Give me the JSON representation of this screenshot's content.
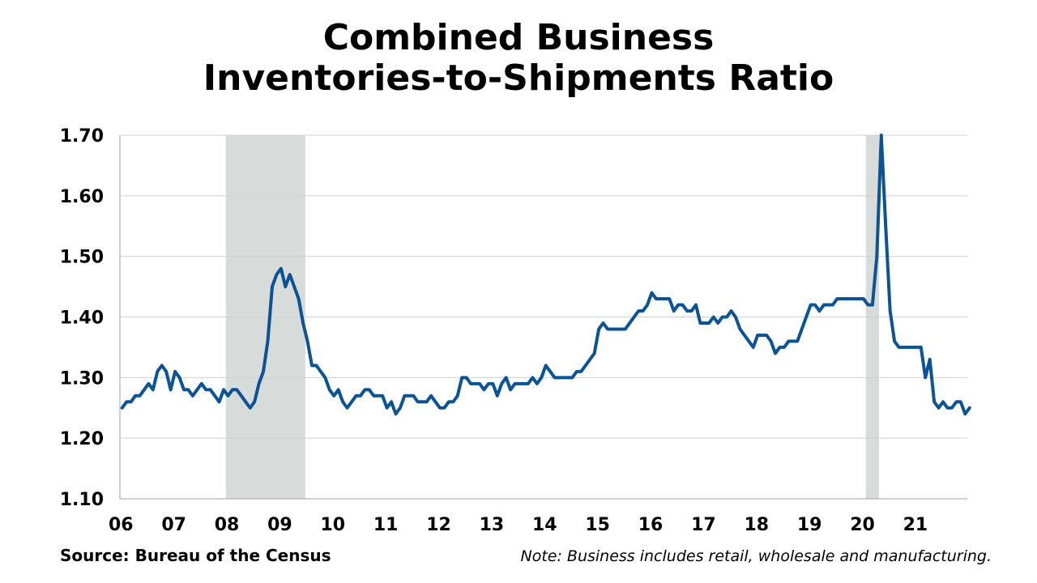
{
  "chart_data": {
    "type": "line",
    "title_line1": "Combined Business",
    "title_line2": "Inventories-to-Shipments Ratio",
    "ylim": [
      1.1,
      1.7
    ],
    "yticks": [
      "1.70",
      "1.60",
      "1.50",
      "1.40",
      "1.30",
      "1.20",
      "1.10"
    ],
    "xticks": [
      "06",
      "07",
      "08",
      "09",
      "10",
      "11",
      "12",
      "13",
      "14",
      "15",
      "16",
      "17",
      "18",
      "19",
      "20",
      "21"
    ],
    "x_start": "2006-01",
    "x_end": "2021-11",
    "grid": true,
    "line_color": "#0b5394",
    "recession_color": "#d7dbd9",
    "recessions": [
      [
        "2008-01",
        "2009-06"
      ],
      [
        "2020-02",
        "2020-04"
      ]
    ],
    "series": [
      {
        "values": [
          1.25,
          1.26,
          1.26,
          1.27,
          1.27,
          1.28,
          1.29,
          1.28,
          1.31,
          1.32,
          1.31,
          1.28,
          1.31,
          1.3,
          1.28,
          1.28,
          1.27,
          1.28,
          1.29,
          1.28,
          1.28,
          1.27,
          1.26,
          1.28,
          1.27,
          1.28,
          1.28,
          1.27,
          1.26,
          1.25,
          1.26,
          1.29,
          1.31,
          1.36,
          1.45,
          1.47,
          1.48,
          1.45,
          1.47,
          1.45,
          1.43,
          1.39,
          1.36,
          1.32,
          1.32,
          1.31,
          1.3,
          1.28,
          1.27,
          1.28,
          1.26,
          1.25,
          1.26,
          1.27,
          1.27,
          1.28,
          1.28,
          1.27,
          1.27,
          1.27,
          1.25,
          1.26,
          1.24,
          1.25,
          1.27,
          1.27,
          1.27,
          1.26,
          1.26,
          1.26,
          1.27,
          1.26,
          1.25,
          1.25,
          1.26,
          1.26,
          1.27,
          1.3,
          1.3,
          1.29,
          1.29,
          1.29,
          1.28,
          1.29,
          1.29,
          1.27,
          1.29,
          1.3,
          1.28,
          1.29,
          1.29,
          1.29,
          1.29,
          1.3,
          1.29,
          1.3,
          1.32,
          1.31,
          1.3,
          1.3,
          1.3,
          1.3,
          1.3,
          1.31,
          1.31,
          1.32,
          1.33,
          1.34,
          1.38,
          1.39,
          1.38,
          1.38,
          1.38,
          1.38,
          1.38,
          1.39,
          1.4,
          1.41,
          1.41,
          1.42,
          1.44,
          1.43,
          1.43,
          1.43,
          1.43,
          1.41,
          1.42,
          1.42,
          1.41,
          1.41,
          1.42,
          1.39,
          1.39,
          1.39,
          1.4,
          1.39,
          1.4,
          1.4,
          1.41,
          1.4,
          1.38,
          1.37,
          1.36,
          1.35,
          1.37,
          1.37,
          1.37,
          1.36,
          1.34,
          1.35,
          1.35,
          1.36,
          1.36,
          1.36,
          1.38,
          1.4,
          1.42,
          1.42,
          1.41,
          1.42,
          1.42,
          1.42,
          1.43,
          1.43,
          1.43,
          1.43,
          1.43,
          1.43,
          1.43,
          1.42,
          1.42,
          1.5,
          1.7,
          1.55,
          1.41,
          1.36,
          1.35,
          1.35,
          1.35,
          1.35,
          1.35,
          1.35,
          1.3,
          1.33,
          1.26,
          1.25,
          1.26,
          1.25,
          1.25,
          1.26,
          1.26,
          1.24,
          1.25
        ]
      }
    ]
  },
  "footer": {
    "source": "Source: Bureau of the Census",
    "note": "Note: Business includes retail, wholesale and manufacturing."
  }
}
